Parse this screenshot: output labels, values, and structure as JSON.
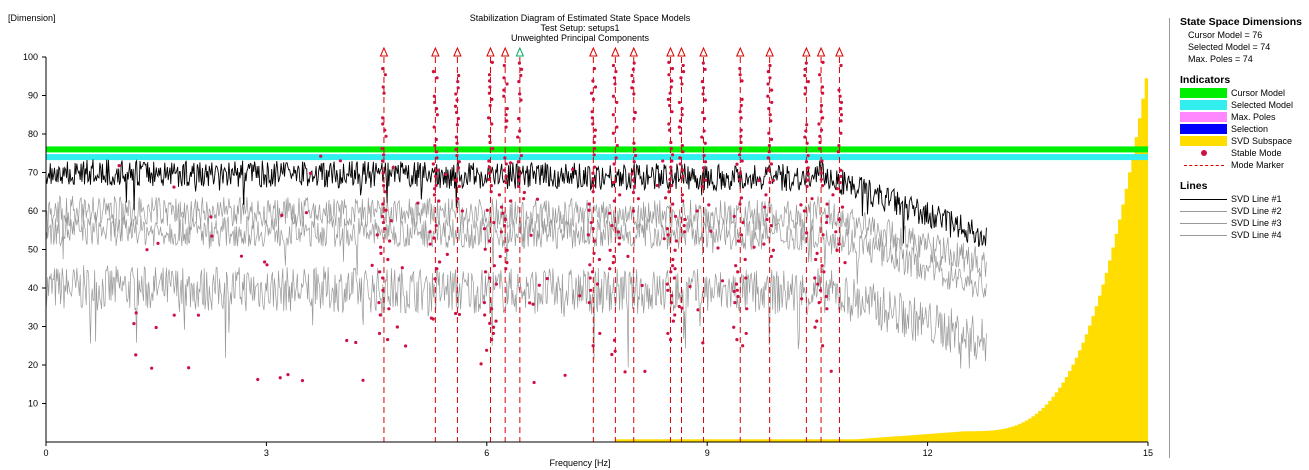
{
  "chart_data": {
    "type": "line",
    "title": "Stabilization Diagram of Estimated State Space Models",
    "subtitle_1": "Test Setup: setups1",
    "subtitle_2": "Unweighted Principal Components",
    "ylabel": "[Dimension]",
    "xlabel": "Frequency [Hz]",
    "xlim": [
      0,
      15
    ],
    "ylim": [
      0,
      100
    ],
    "x_ticks": [
      0,
      3,
      6,
      9,
      12,
      15
    ],
    "y_ticks": [
      10,
      20,
      30,
      40,
      50,
      60,
      70,
      80,
      90,
      100
    ],
    "cursor_model": 76,
    "selected_model": 74,
    "mode_markers": [
      4.6,
      5.3,
      5.6,
      6.05,
      6.25,
      6.45,
      7.45,
      7.75,
      8.0,
      8.5,
      8.65,
      8.95,
      9.45,
      9.85,
      10.35,
      10.55,
      10.8
    ],
    "selected_mode_marker": 6.45,
    "svd_lines": [
      {
        "name": "SVD Line #1",
        "color": "#000000",
        "start": 70,
        "end": 53,
        "x_end": 12.8,
        "noise": 3.5
      },
      {
        "name": "SVD Line #2",
        "color": "#999999",
        "start": 60,
        "end": 46,
        "x_end": 12.8,
        "noise": 4
      },
      {
        "name": "SVD Line #3",
        "color": "#999999",
        "start": 55,
        "end": 40,
        "x_end": 12.8,
        "noise": 4
      },
      {
        "name": "SVD Line #4",
        "color": "#999999",
        "start": 40,
        "end": 26,
        "x_end": 12.8,
        "noise": 6
      }
    ],
    "svd_subspace": {
      "x_start": 7.75,
      "x_end": 15
    }
  },
  "sidebar": {
    "dimensions": {
      "title": "State Space Dimensions",
      "cursor": "Cursor Model = 76",
      "selected": "Selected Model = 74",
      "maxpoles": "Max. Poles = 74"
    },
    "indicators": {
      "title": "Indicators",
      "items": [
        {
          "label": "Cursor Model",
          "color": "#00ee00"
        },
        {
          "label": "Selected Model",
          "color": "#33eeee"
        },
        {
          "label": "Max. Poles",
          "color": "#ff88ff"
        },
        {
          "label": "Selection",
          "color": "#0000ff"
        },
        {
          "label": "SVD Subspace",
          "color": "#ffdd00"
        }
      ],
      "stable_mode": "Stable Mode",
      "mode_marker": "Mode Marker"
    },
    "lines": {
      "title": "Lines",
      "items": [
        "SVD Line #1",
        "SVD Line #2",
        "SVD Line #3",
        "SVD Line #4"
      ]
    }
  }
}
